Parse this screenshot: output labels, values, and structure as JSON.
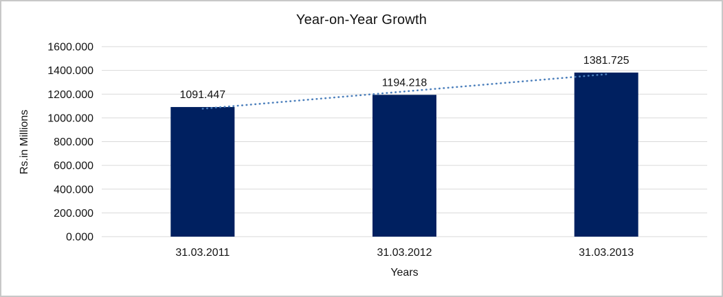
{
  "chart_data": {
    "type": "bar",
    "title": "Year-on-Year Growth",
    "xlabel": "Years",
    "ylabel": "Rs.in Millions",
    "categories": [
      "31.03.2011",
      "31.03.2012",
      "31.03.2013"
    ],
    "values": [
      1091.447,
      1194.218,
      1381.725
    ],
    "data_labels": [
      "1091.447",
      "1194.218",
      "1381.725"
    ],
    "ylim": [
      0,
      1600
    ],
    "yticks": [
      {
        "value": 0,
        "label": "0.000"
      },
      {
        "value": 200,
        "label": "200.000"
      },
      {
        "value": 400,
        "label": "400.000"
      },
      {
        "value": 600,
        "label": "600.000"
      },
      {
        "value": 800,
        "label": "800.000"
      },
      {
        "value": 1000,
        "label": "1000.000"
      },
      {
        "value": 1200,
        "label": "1200.000"
      },
      {
        "value": 1400,
        "label": "1400.000"
      },
      {
        "value": 1600,
        "label": "1600.000"
      }
    ],
    "grid": true,
    "legend": "none",
    "colors": {
      "bar": "#002060",
      "trendline": "#4a7ebb",
      "gridline": "#d9d9d9",
      "text": "#121212",
      "frame_border": "#c8c8c8",
      "background": "#ffffff"
    },
    "trendline": {
      "kind": "linear",
      "style": "dotted"
    }
  }
}
